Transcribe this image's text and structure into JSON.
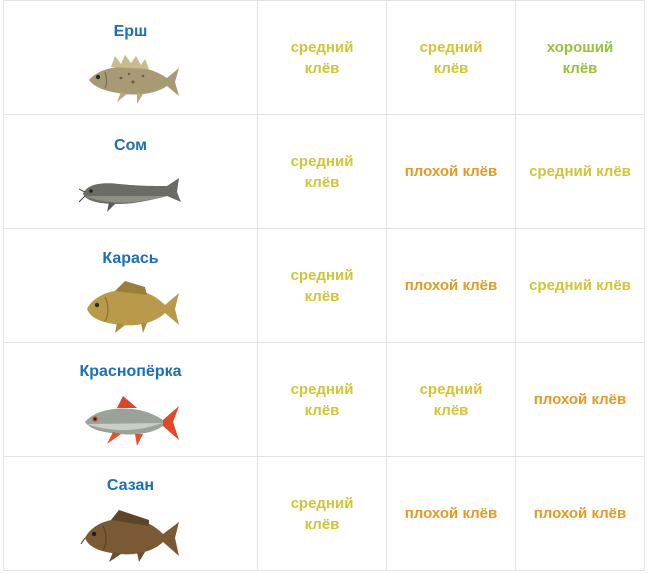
{
  "colors": {
    "fish_name": "#1a6fb5",
    "bite_medium": "#d2c43a",
    "bite_bad": "#e29a2a",
    "bite_good": "#95c23b",
    "grid_line": "#e3e3e3"
  },
  "rows": [
    {
      "fish": "Ерш",
      "icon": "ruffe-fish-icon",
      "bites": [
        "средний клёв",
        "средний клёв",
        "хороший клёв"
      ]
    },
    {
      "fish": "Сом",
      "icon": "catfish-icon",
      "bites": [
        "средний клёв",
        "плохой клёв",
        "средний клёв"
      ]
    },
    {
      "fish": "Карась",
      "icon": "crucian-carp-icon",
      "bites": [
        "средний клёв",
        "плохой клёв",
        "средний клёв"
      ]
    },
    {
      "fish": "Краснопёрка",
      "icon": "rudd-fish-icon",
      "bites": [
        "средний клёв",
        "средний клёв",
        "плохой клёв"
      ]
    },
    {
      "fish": "Сазан",
      "icon": "carp-icon",
      "bites": [
        "средний клёв",
        "плохой клёв",
        "плохой клёв"
      ]
    }
  ]
}
